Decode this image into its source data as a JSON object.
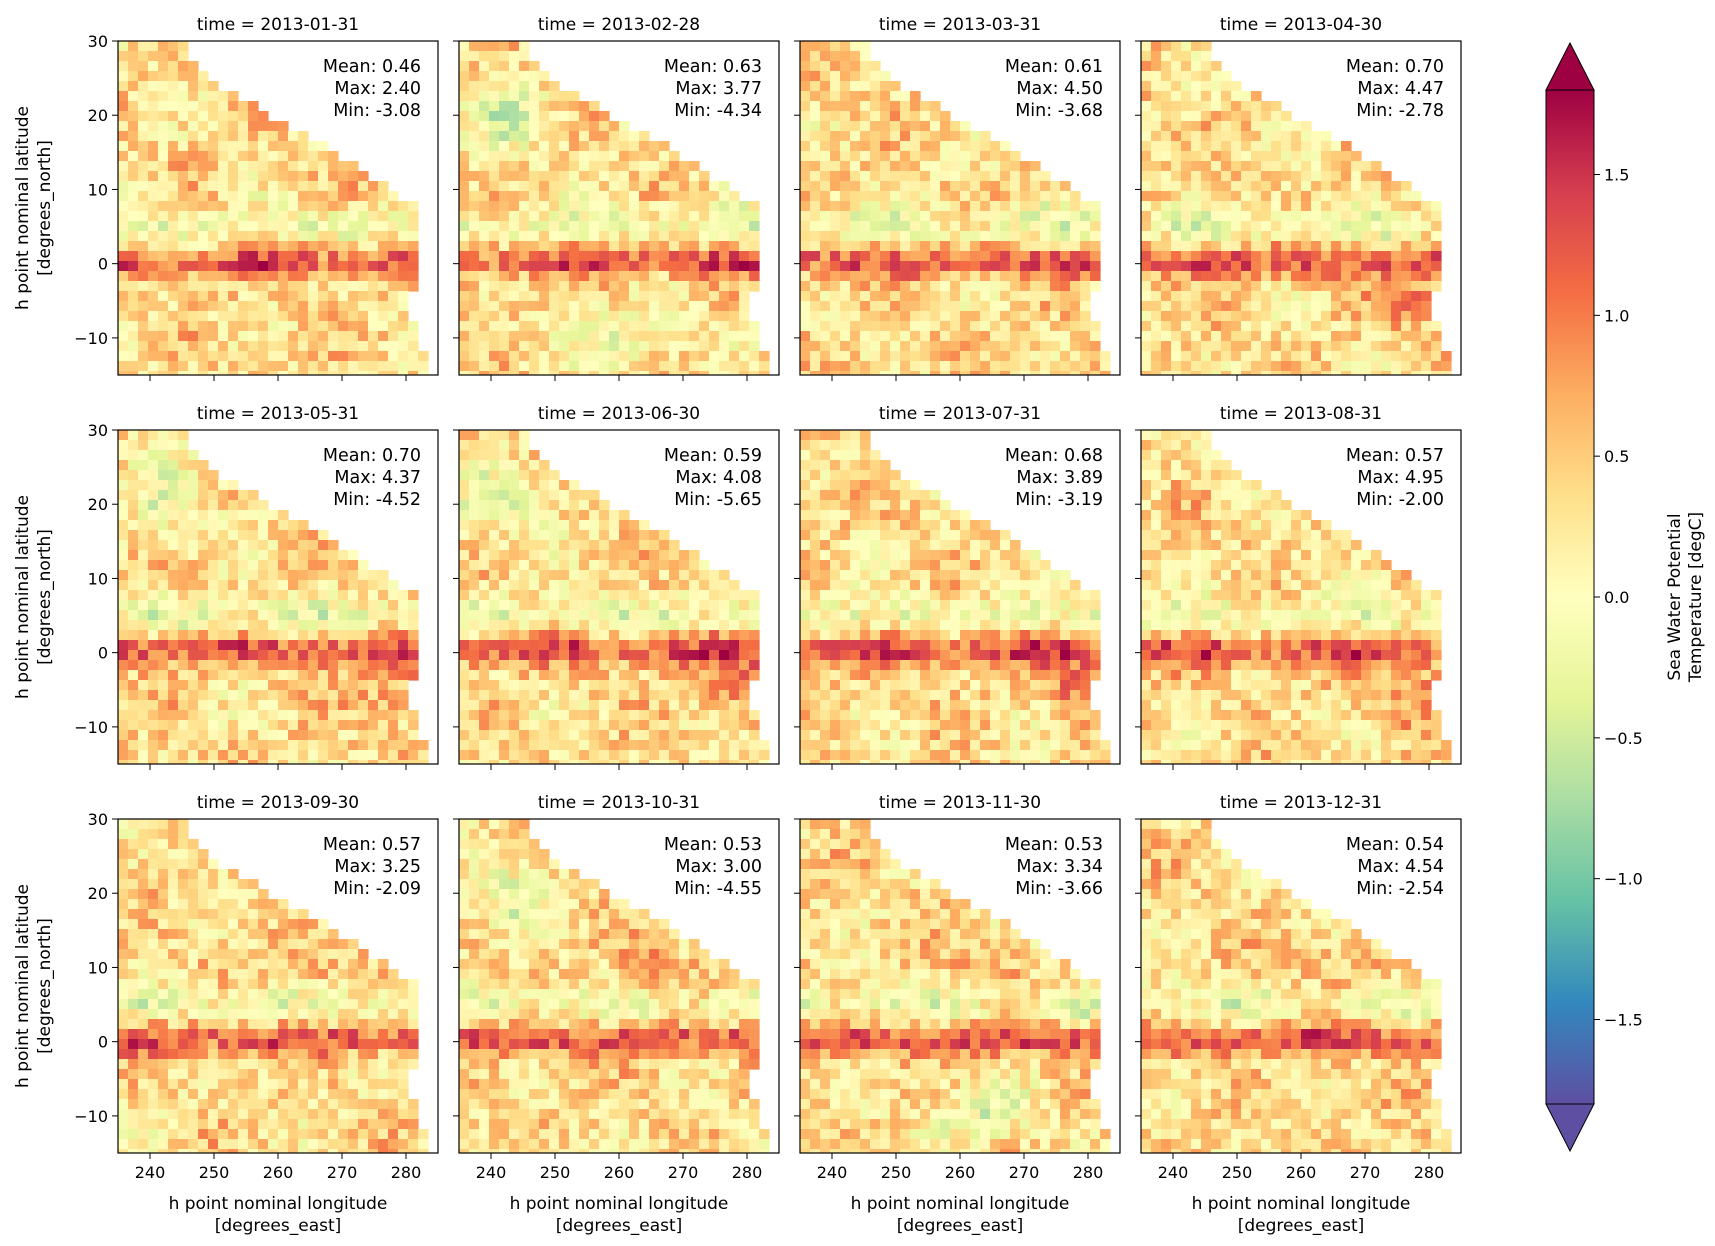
{
  "chart_data": {
    "type": "heatmap",
    "layout": "3x4 small multiples, shared axes",
    "x_axis": {
      "label_line1": "h point nominal longitude",
      "label_line2": "[degrees_east]",
      "ticks": [
        240,
        250,
        260,
        270,
        280
      ],
      "tick_labels": [
        "240",
        "250",
        "260",
        "270",
        "280"
      ],
      "range": [
        235,
        285
      ]
    },
    "y_axis": {
      "label_line1": "h point nominal latitude",
      "label_line2": "[degrees_north]",
      "ticks": [
        30,
        20,
        10,
        0,
        -10
      ],
      "tick_labels": [
        "30",
        "20",
        "10",
        "0",
        "−10"
      ],
      "range": [
        -15,
        30
      ]
    },
    "colorbar": {
      "label_line1": "Sea Water Potential",
      "label_line2": "Temperature [degC]",
      "colormap": "Spectral_r",
      "range": [
        -1.8,
        1.8
      ],
      "extend": "both",
      "ticks": [
        1.5,
        1.0,
        0.5,
        0.0,
        -0.5,
        -1.0,
        -1.5
      ],
      "tick_labels": [
        "1.5",
        "1.0",
        "0.5",
        "0.0",
        "−0.5",
        "−1.0",
        "−1.5"
      ]
    },
    "contour_color": "#ffffff",
    "panels": [
      {
        "title": "time = 2013-01-31",
        "mean": "Mean: 0.46",
        "max": "Max: 2.40",
        "min": "Min: -3.08"
      },
      {
        "title": "time = 2013-02-28",
        "mean": "Mean: 0.63",
        "max": "Max: 3.77",
        "min": "Min: -4.34"
      },
      {
        "title": "time = 2013-03-31",
        "mean": "Mean: 0.61",
        "max": "Max: 4.50",
        "min": "Min: -3.68"
      },
      {
        "title": "time = 2013-04-30",
        "mean": "Mean: 0.70",
        "max": "Max: 4.47",
        "min": "Min: -2.78"
      },
      {
        "title": "time = 2013-05-31",
        "mean": "Mean: 0.70",
        "max": "Max: 4.37",
        "min": "Min: -4.52"
      },
      {
        "title": "time = 2013-06-30",
        "mean": "Mean: 0.59",
        "max": "Max: 4.08",
        "min": "Min: -5.65"
      },
      {
        "title": "time = 2013-07-31",
        "mean": "Mean: 0.68",
        "max": "Max: 3.89",
        "min": "Min: -3.19"
      },
      {
        "title": "time = 2013-08-31",
        "mean": "Mean: 0.57",
        "max": "Max: 4.95",
        "min": "Min: -2.00"
      },
      {
        "title": "time = 2013-09-30",
        "mean": "Mean: 0.57",
        "max": "Max: 3.25",
        "min": "Min: -2.09"
      },
      {
        "title": "time = 2013-10-31",
        "mean": "Mean: 0.53",
        "max": "Max: 3.00",
        "min": "Min: -4.55"
      },
      {
        "title": "time = 2013-11-30",
        "mean": "Mean: 0.53",
        "max": "Max: 3.34",
        "min": "Min: -3.66"
      },
      {
        "title": "time = 2013-12-31",
        "mean": "Mean: 0.54",
        "max": "Max: 4.54",
        "min": "Min: -2.54"
      }
    ]
  }
}
